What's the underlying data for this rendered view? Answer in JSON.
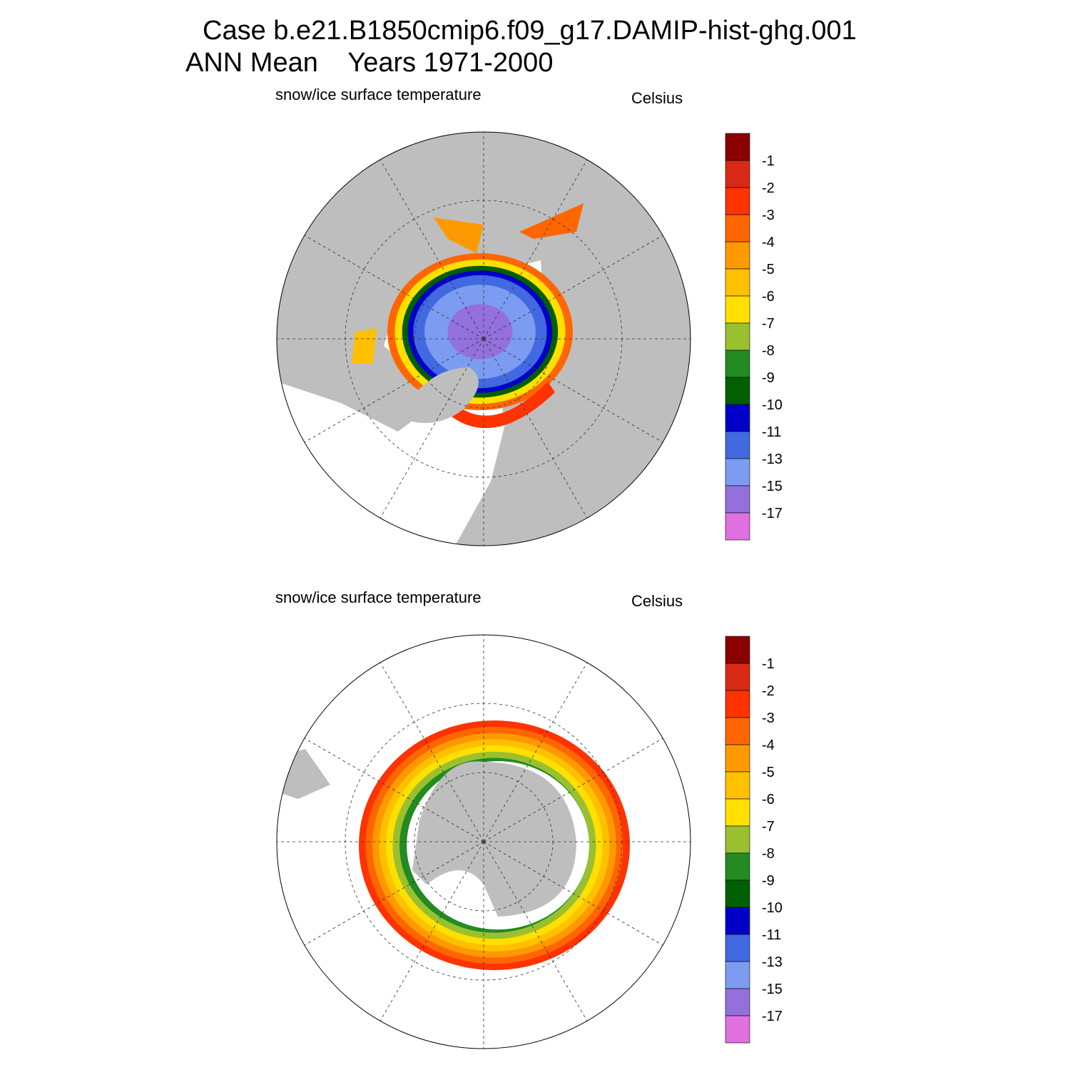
{
  "title": {
    "line1": "Case b.e21.B1850cmip6.f09_g17.DAMIP-hist-ghg.001",
    "line2": "ANN Mean    Years 1971-2000"
  },
  "panels": [
    {
      "subtitle": "snow/ice surface temperature",
      "units": "Celsius"
    },
    {
      "subtitle": "snow/ice surface temperature",
      "units": "Celsius"
    }
  ],
  "colorbar": {
    "colors": [
      "#8b0000",
      "#d82a14",
      "#ff3300",
      "#ff6600",
      "#ff9900",
      "#ffc000",
      "#ffe000",
      "#9ac030",
      "#228b22",
      "#006000",
      "#0000c8",
      "#4169e1",
      "#7b9cf0",
      "#9370db",
      "#e070e0"
    ],
    "labels": [
      "-1",
      "-2",
      "-3",
      "-4",
      "-5",
      "-6",
      "-7",
      "-8",
      "-9",
      "-10",
      "-11",
      "-13",
      "-15",
      "-17"
    ]
  }
}
